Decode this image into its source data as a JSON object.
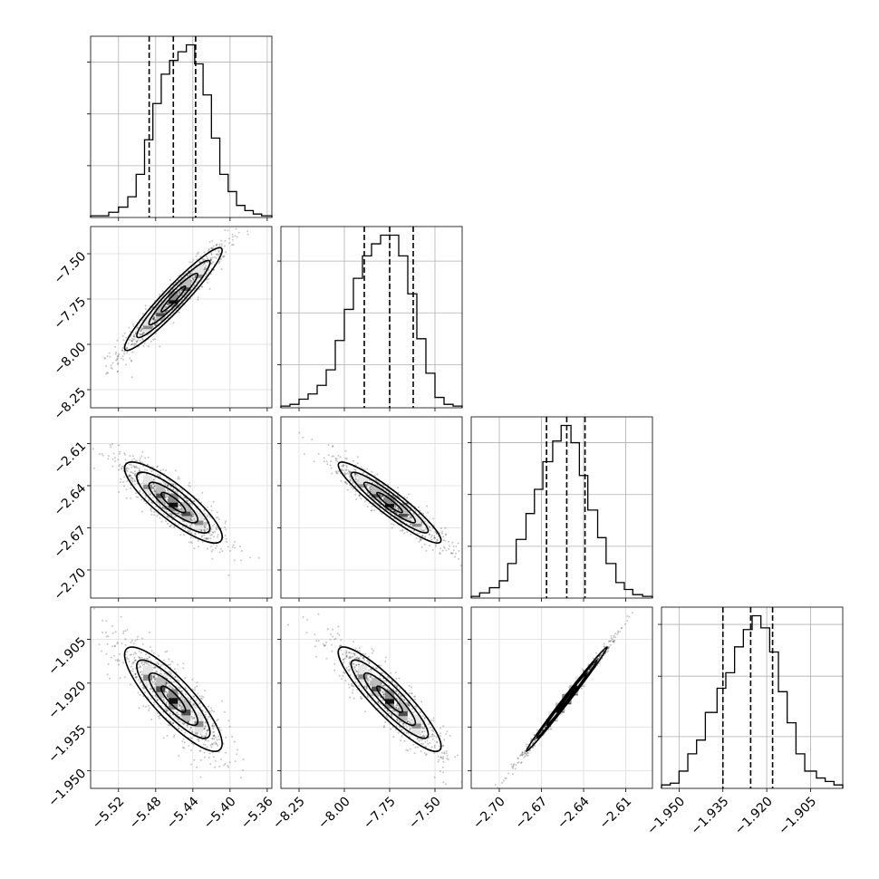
{
  "chart_data": {
    "type": "corner",
    "n_params": 4,
    "grid": true,
    "parameters": [
      {
        "range": [
          -5.55,
          -5.355
        ],
        "ticks": [
          -5.52,
          -5.48,
          -5.44,
          -5.4,
          -5.36
        ],
        "tick_labels": [
          "−5.52",
          "−5.48",
          "−5.44",
          "−5.40",
          "−5.36"
        ],
        "quantiles": [
          -5.487,
          -5.461,
          -5.437
        ],
        "hist_edges": [
          -5.55,
          -5.5305,
          -5.52,
          -5.51,
          -5.501,
          -5.492,
          -5.483,
          -5.474,
          -5.465,
          -5.456,
          -5.447,
          -5.438,
          -5.429,
          -5.42,
          -5.411,
          -5.402,
          -5.393,
          -5.384,
          -5.375,
          -5.366,
          -5.355
        ],
        "hist_values": [
          0.01,
          0.03,
          0.06,
          0.12,
          0.25,
          0.45,
          0.66,
          0.83,
          0.91,
          0.96,
          1.0,
          0.89,
          0.71,
          0.46,
          0.25,
          0.15,
          0.07,
          0.04,
          0.02,
          0.01
        ],
        "hist_ticks": [
          0.3,
          0.6,
          0.9
        ]
      },
      {
        "range": [
          -8.35,
          -7.35
        ],
        "ticks": [
          -8.25,
          -8.0,
          -7.75,
          -7.5
        ],
        "tick_labels": [
          "−8.25",
          "−8.00",
          "−7.75",
          "−7.50"
        ],
        "quantiles": [
          -7.89,
          -7.75,
          -7.62
        ],
        "hist_edges": [
          -8.35,
          -8.3,
          -8.25,
          -8.2,
          -8.15,
          -8.1,
          -8.05,
          -8.0,
          -7.95,
          -7.9,
          -7.85,
          -7.8,
          -7.75,
          -7.7,
          -7.65,
          -7.6,
          -7.55,
          -7.5,
          -7.45,
          -7.4,
          -7.35
        ],
        "hist_values": [
          0.01,
          0.02,
          0.05,
          0.08,
          0.13,
          0.22,
          0.39,
          0.57,
          0.75,
          0.88,
          0.95,
          1.0,
          1.0,
          0.88,
          0.66,
          0.4,
          0.2,
          0.06,
          0.02,
          0.01
        ],
        "hist_ticks": [
          0.25,
          0.55,
          0.85
        ]
      },
      {
        "range": [
          -2.72,
          -2.591
        ],
        "ticks": [
          -2.7,
          -2.67,
          -2.64,
          -2.61
        ],
        "tick_labels": [
          "−2.70",
          "−2.67",
          "−2.64",
          "−2.61"
        ],
        "quantiles": [
          -2.6664,
          -2.652,
          -2.639
        ],
        "hist_edges": [
          -2.72,
          -2.714,
          -2.707,
          -2.7,
          -2.694,
          -2.688,
          -2.681,
          -2.675,
          -2.669,
          -2.662,
          -2.656,
          -2.649,
          -2.643,
          -2.637,
          -2.63,
          -2.624,
          -2.617,
          -2.611,
          -2.605,
          -2.598,
          -2.591
        ],
        "hist_values": [
          0.01,
          0.03,
          0.06,
          0.1,
          0.2,
          0.34,
          0.49,
          0.63,
          0.79,
          0.91,
          1.0,
          0.9,
          0.71,
          0.51,
          0.35,
          0.2,
          0.09,
          0.05,
          0.02,
          0.01
        ],
        "hist_ticks": [
          0.3,
          0.6,
          0.9
        ]
      },
      {
        "range": [
          -1.956,
          -1.894
        ],
        "ticks": [
          -1.95,
          -1.935,
          -1.92,
          -1.905
        ],
        "tick_labels": [
          "−1.950",
          "−1.935",
          "−1.920",
          "−1.905"
        ],
        "quantiles": [
          -1.935,
          -1.9255,
          -1.918
        ],
        "hist_edges": [
          -1.956,
          -1.953,
          -1.95,
          -1.947,
          -1.944,
          -1.941,
          -1.937,
          -1.934,
          -1.931,
          -1.928,
          -1.925,
          -1.922,
          -1.919,
          -1.916,
          -1.913,
          -1.91,
          -1.907,
          -1.903,
          -1.9,
          -1.897,
          -1.894
        ],
        "hist_values": [
          0.02,
          0.03,
          0.1,
          0.2,
          0.28,
          0.44,
          0.58,
          0.67,
          0.82,
          0.92,
          1.0,
          0.93,
          0.79,
          0.56,
          0.38,
          0.2,
          0.1,
          0.06,
          0.04,
          0.02
        ],
        "hist_ticks": [
          0.3,
          0.65,
          0.95
        ]
      }
    ],
    "pairs": [
      {
        "row": 1,
        "col": 0,
        "mean": [
          -5.461,
          -7.75
        ],
        "corr": 0.95
      },
      {
        "row": 2,
        "col": 0,
        "mean": [
          -5.461,
          -2.652
        ],
        "corr": -0.85
      },
      {
        "row": 2,
        "col": 1,
        "mean": [
          -7.75,
          -2.652
        ],
        "corr": -0.93
      },
      {
        "row": 3,
        "col": 0,
        "mean": [
          -5.461,
          -1.9255
        ],
        "corr": -0.85
      },
      {
        "row": 3,
        "col": 1,
        "mean": [
          -7.75,
          -1.9255
        ],
        "corr": -0.9
      },
      {
        "row": 3,
        "col": 2,
        "mean": [
          -2.652,
          -1.9255
        ],
        "corr": 0.995
      }
    ],
    "colors": {
      "line": "#000000",
      "grid": "#b0b0b0",
      "scatter": "#000000"
    }
  }
}
